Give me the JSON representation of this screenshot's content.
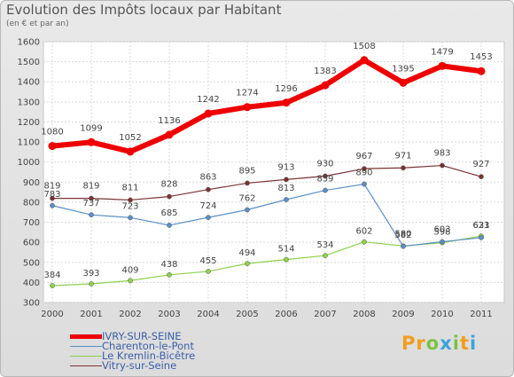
{
  "chart_data": {
    "type": "line",
    "title": "Evolution des Impôts locaux par Habitant",
    "subtitle": "(en € et par an)",
    "x": [
      "2000",
      "2001",
      "2002",
      "2003",
      "2004",
      "2005",
      "2006",
      "2007",
      "2008",
      "2009",
      "2010",
      "2011"
    ],
    "y_ticks": [
      300,
      400,
      500,
      600,
      700,
      800,
      900,
      1000,
      1100,
      1200,
      1300,
      1400,
      1500,
      1600
    ],
    "ylim": [
      300,
      1600
    ],
    "grid": true,
    "legend_position": "bottom-left",
    "series": [
      {
        "name": "IVRY-SUR-SEINE",
        "color": "#ee0000",
        "values": [
          1080,
          1099,
          1052,
          1136,
          1242,
          1274,
          1296,
          1383,
          1508,
          1395,
          1479,
          1453
        ],
        "labels": [
          "1080",
          "1099",
          "1052",
          "1136",
          "1242",
          "1274",
          "1296",
          "1383",
          "1508",
          "1395",
          "1479",
          "1453"
        ]
      },
      {
        "name": "Charenton-le-Pont",
        "color": "#5b8fc7",
        "values": [
          783,
          737,
          723,
          685,
          724,
          762,
          813,
          859,
          890,
          580,
          603,
          623
        ],
        "labels": [
          "783",
          "737",
          "723",
          "685",
          "724",
          "762",
          "813",
          "859",
          "890",
          "580",
          "603",
          "623"
        ]
      },
      {
        "name": "Le Kremlin-Bicêtre",
        "color": "#8ed14a",
        "values": [
          384,
          393,
          409,
          438,
          455,
          494,
          514,
          534,
          602,
          582,
          598,
          631
        ],
        "labels": [
          "384",
          "393",
          "409",
          "438",
          "455",
          "494",
          "514",
          "534",
          "602",
          "582",
          "598",
          "631"
        ]
      },
      {
        "name": "Vitry-sur-Seine",
        "color": "#7a3333",
        "values": [
          819,
          819,
          811,
          828,
          863,
          895,
          913,
          930,
          967,
          971,
          983,
          927
        ],
        "labels": [
          "819",
          "819",
          "811",
          "828",
          "863",
          "895",
          "913",
          "930",
          "967",
          "971",
          "983",
          "927"
        ]
      }
    ]
  },
  "logo": {
    "text_parts": [
      {
        "text": "Pr",
        "color": "#f29d1c"
      },
      {
        "text": "o",
        "color": "#7cc242"
      },
      {
        "text": "x",
        "color": "#3aa3dc"
      },
      {
        "text": "i",
        "color": "#7cc242"
      },
      {
        "text": "t",
        "color": "#f29d1c"
      },
      {
        "text": "i",
        "color": "#3aa3dc"
      }
    ]
  }
}
